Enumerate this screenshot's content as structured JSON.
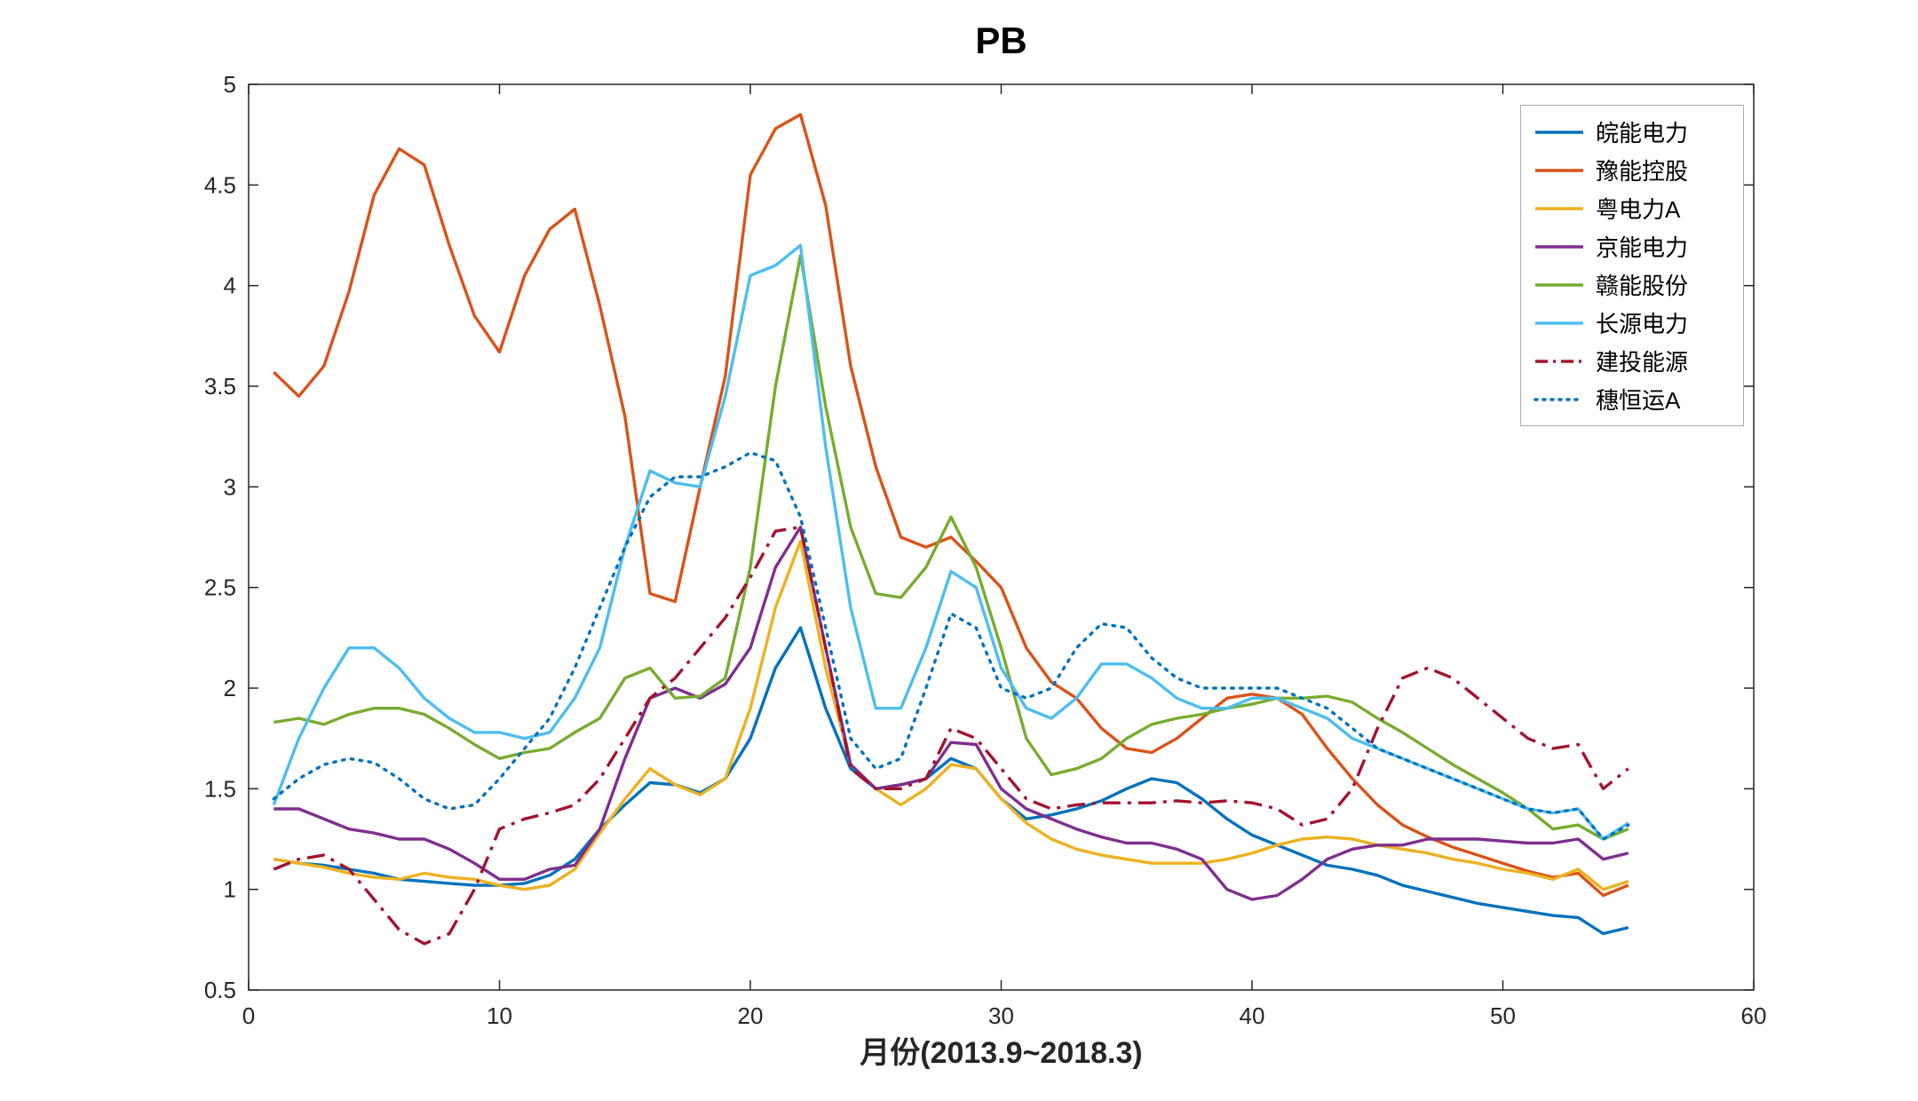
{
  "chart_data": {
    "type": "line",
    "title": "PB",
    "xlabel": "月份(2013.9~2018.3)",
    "ylabel": "",
    "xlim": [
      0,
      60
    ],
    "ylim": [
      0.5,
      5
    ],
    "xticks": [
      0,
      10,
      20,
      30,
      40,
      50,
      60
    ],
    "yticks": [
      0.5,
      1,
      1.5,
      2,
      2.5,
      3,
      3.5,
      4,
      4.5,
      5
    ],
    "grid": false,
    "legend_position": "top-right",
    "axis_color": "#262626",
    "background_color": "#ffffff",
    "x": [
      1,
      2,
      3,
      4,
      5,
      6,
      7,
      8,
      9,
      10,
      11,
      12,
      13,
      14,
      15,
      16,
      17,
      18,
      19,
      20,
      21,
      22,
      23,
      24,
      25,
      26,
      27,
      28,
      29,
      30,
      31,
      32,
      33,
      34,
      35,
      36,
      37,
      38,
      39,
      40,
      41,
      42,
      43,
      44,
      45,
      46,
      47,
      48,
      49,
      50,
      51,
      52,
      53,
      54,
      55
    ],
    "series": [
      {
        "name": "皖能电力",
        "color": "#0072BD",
        "style": "solid",
        "values": [
          1.15,
          1.13,
          1.12,
          1.1,
          1.08,
          1.05,
          1.04,
          1.03,
          1.02,
          1.02,
          1.03,
          1.07,
          1.15,
          1.3,
          1.42,
          1.53,
          1.52,
          1.48,
          1.55,
          1.75,
          2.1,
          2.3,
          1.9,
          1.6,
          1.5,
          1.52,
          1.55,
          1.65,
          1.6,
          1.45,
          1.35,
          1.37,
          1.4,
          1.44,
          1.5,
          1.55,
          1.53,
          1.45,
          1.35,
          1.27,
          1.22,
          1.17,
          1.12,
          1.1,
          1.07,
          1.02,
          0.99,
          0.96,
          0.93,
          0.91,
          0.89,
          0.87,
          0.86,
          0.78,
          0.81
        ]
      },
      {
        "name": "豫能控股",
        "color": "#D95319",
        "style": "solid",
        "values": [
          3.57,
          3.45,
          3.6,
          3.97,
          4.45,
          4.68,
          4.6,
          4.2,
          3.85,
          3.67,
          4.05,
          4.28,
          4.38,
          3.9,
          3.35,
          2.47,
          2.43,
          3.0,
          3.55,
          4.55,
          4.78,
          4.85,
          4.4,
          3.6,
          3.1,
          2.75,
          2.7,
          2.75,
          2.63,
          2.5,
          2.2,
          2.03,
          1.95,
          1.8,
          1.7,
          1.68,
          1.75,
          1.85,
          1.95,
          1.97,
          1.95,
          1.87,
          1.7,
          1.55,
          1.42,
          1.32,
          1.26,
          1.21,
          1.17,
          1.13,
          1.09,
          1.06,
          1.08,
          0.97,
          1.02
        ]
      },
      {
        "name": "粤电力A",
        "color": "#EDB120",
        "style": "solid",
        "values": [
          1.15,
          1.13,
          1.11,
          1.08,
          1.06,
          1.05,
          1.08,
          1.06,
          1.05,
          1.02,
          1.0,
          1.02,
          1.1,
          1.28,
          1.45,
          1.6,
          1.52,
          1.47,
          1.55,
          1.9,
          2.4,
          2.73,
          2.1,
          1.62,
          1.5,
          1.42,
          1.5,
          1.62,
          1.6,
          1.45,
          1.33,
          1.25,
          1.2,
          1.17,
          1.15,
          1.13,
          1.13,
          1.13,
          1.15,
          1.18,
          1.22,
          1.25,
          1.26,
          1.25,
          1.22,
          1.2,
          1.18,
          1.15,
          1.13,
          1.1,
          1.08,
          1.05,
          1.1,
          1.0,
          1.04
        ]
      },
      {
        "name": "京能电力",
        "color": "#7E2F8E",
        "style": "solid",
        "values": [
          1.4,
          1.4,
          1.35,
          1.3,
          1.28,
          1.25,
          1.25,
          1.2,
          1.13,
          1.05,
          1.05,
          1.1,
          1.12,
          1.3,
          1.65,
          1.95,
          2.0,
          1.95,
          2.02,
          2.2,
          2.6,
          2.8,
          2.2,
          1.62,
          1.5,
          1.52,
          1.55,
          1.73,
          1.72,
          1.5,
          1.4,
          1.35,
          1.3,
          1.26,
          1.23,
          1.23,
          1.2,
          1.15,
          1.0,
          0.95,
          0.97,
          1.05,
          1.15,
          1.2,
          1.22,
          1.22,
          1.25,
          1.25,
          1.25,
          1.24,
          1.23,
          1.23,
          1.25,
          1.15,
          1.18
        ]
      },
      {
        "name": "赣能股份",
        "color": "#77AC30",
        "style": "solid",
        "values": [
          1.83,
          1.85,
          1.82,
          1.87,
          1.9,
          1.9,
          1.87,
          1.8,
          1.72,
          1.65,
          1.68,
          1.7,
          1.78,
          1.85,
          2.05,
          2.1,
          1.95,
          1.96,
          2.05,
          2.6,
          3.5,
          4.15,
          3.4,
          2.8,
          2.47,
          2.45,
          2.6,
          2.85,
          2.6,
          2.2,
          1.75,
          1.57,
          1.6,
          1.65,
          1.75,
          1.82,
          1.85,
          1.87,
          1.9,
          1.92,
          1.95,
          1.95,
          1.96,
          1.93,
          1.85,
          1.78,
          1.7,
          1.62,
          1.55,
          1.48,
          1.4,
          1.3,
          1.32,
          1.25,
          1.3
        ]
      },
      {
        "name": "长源电力",
        "color": "#4DBEEE",
        "style": "solid",
        "values": [
          1.42,
          1.75,
          2.0,
          2.2,
          2.2,
          2.1,
          1.95,
          1.85,
          1.78,
          1.78,
          1.75,
          1.78,
          1.95,
          2.2,
          2.7,
          3.08,
          3.02,
          3.0,
          3.45,
          4.05,
          4.1,
          4.2,
          3.2,
          2.4,
          1.9,
          1.9,
          2.2,
          2.58,
          2.5,
          2.1,
          1.9,
          1.85,
          1.95,
          2.12,
          2.12,
          2.05,
          1.95,
          1.9,
          1.9,
          1.95,
          1.95,
          1.9,
          1.85,
          1.75,
          1.7,
          1.65,
          1.6,
          1.55,
          1.5,
          1.45,
          1.4,
          1.38,
          1.4,
          1.25,
          1.33
        ]
      },
      {
        "name": "建投能源",
        "color": "#A2142F",
        "style": "dash-dot",
        "values": [
          1.1,
          1.15,
          1.17,
          1.1,
          0.95,
          0.8,
          0.73,
          0.78,
          1.0,
          1.3,
          1.35,
          1.38,
          1.42,
          1.55,
          1.75,
          1.95,
          2.05,
          2.2,
          2.35,
          2.55,
          2.78,
          2.8,
          2.2,
          1.6,
          1.5,
          1.5,
          1.55,
          1.8,
          1.75,
          1.6,
          1.45,
          1.4,
          1.42,
          1.43,
          1.43,
          1.43,
          1.44,
          1.43,
          1.44,
          1.43,
          1.4,
          1.32,
          1.35,
          1.5,
          1.8,
          2.05,
          2.1,
          2.05,
          1.95,
          1.85,
          1.75,
          1.7,
          1.72,
          1.5,
          1.6
        ]
      },
      {
        "name": "穗恒运A",
        "color": "#0072BD",
        "style": "dotted",
        "values": [
          1.45,
          1.55,
          1.62,
          1.65,
          1.63,
          1.55,
          1.45,
          1.4,
          1.42,
          1.55,
          1.7,
          1.85,
          2.1,
          2.4,
          2.7,
          2.95,
          3.05,
          3.05,
          3.1,
          3.17,
          3.13,
          2.85,
          2.3,
          1.75,
          1.6,
          1.65,
          2.0,
          2.37,
          2.3,
          2.0,
          1.95,
          2.0,
          2.2,
          2.32,
          2.3,
          2.15,
          2.05,
          2.0,
          2.0,
          2.0,
          2.0,
          1.95,
          1.9,
          1.8,
          1.7,
          1.65,
          1.6,
          1.55,
          1.5,
          1.45,
          1.4,
          1.38,
          1.4,
          1.25,
          1.32
        ]
      }
    ]
  }
}
